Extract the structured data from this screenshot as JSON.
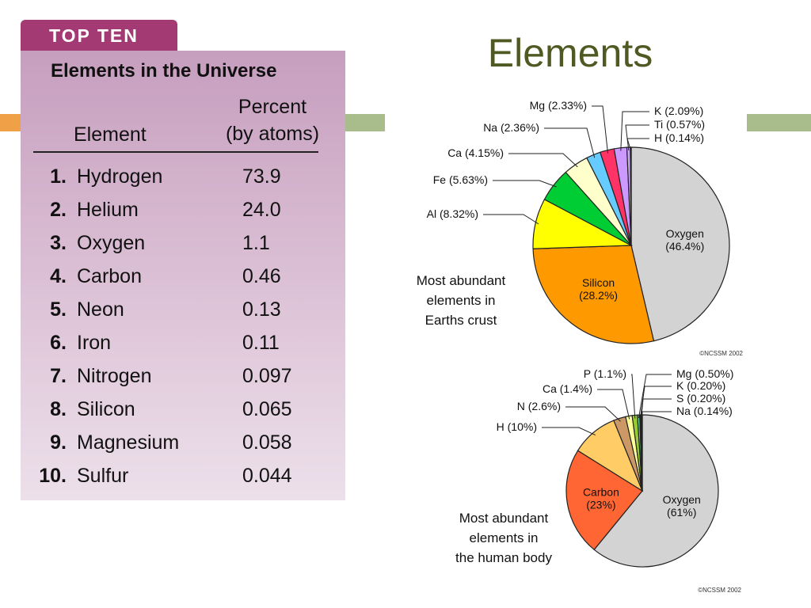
{
  "slide": {
    "title": "Elements"
  },
  "table": {
    "tab_label": "TOP TEN",
    "title": "Elements in the Universe",
    "col_element": "Element",
    "col_percent_line1": "Percent",
    "col_percent_line2": "(by atoms)",
    "rows": [
      {
        "rank": "1.",
        "element": "Hydrogen",
        "percent": "73.9"
      },
      {
        "rank": "2.",
        "element": "Helium",
        "percent": "24.0"
      },
      {
        "rank": "3.",
        "element": "Oxygen",
        "percent": "1.1"
      },
      {
        "rank": "4.",
        "element": "Carbon",
        "percent": "0.46"
      },
      {
        "rank": "5.",
        "element": "Neon",
        "percent": "0.13"
      },
      {
        "rank": "6.",
        "element": "Iron",
        "percent": "0.11"
      },
      {
        "rank": "7.",
        "element": "Nitrogen",
        "percent": "0.097"
      },
      {
        "rank": "8.",
        "element": "Silicon",
        "percent": "0.065"
      },
      {
        "rank": "9.",
        "element": "Magnesium",
        "percent": "0.058"
      },
      {
        "rank": "10.",
        "element": "Sulfur",
        "percent": "0.044"
      }
    ]
  },
  "chart_data": [
    {
      "type": "table",
      "title": "Elements in the Universe",
      "columns": [
        "Element",
        "Percent (by atoms)"
      ],
      "rows": [
        [
          "Hydrogen",
          73.9
        ],
        [
          "Helium",
          24.0
        ],
        [
          "Oxygen",
          1.1
        ],
        [
          "Carbon",
          0.46
        ],
        [
          "Neon",
          0.13
        ],
        [
          "Iron",
          0.11
        ],
        [
          "Nitrogen",
          0.097
        ],
        [
          "Silicon",
          0.065
        ],
        [
          "Magnesium",
          0.058
        ],
        [
          "Sulfur",
          0.044
        ]
      ]
    },
    {
      "type": "pie",
      "caption": [
        "Most abundant",
        "elements in",
        "Earths crust"
      ],
      "credit": "©NCSSM 2002",
      "slices": [
        {
          "label": "Oxygen (46.4%)",
          "name": "Oxygen",
          "pct": "(46.4%)",
          "value": 46.4,
          "color": "#d3d3d3",
          "inside": true
        },
        {
          "label": "Silicon (28.2%)",
          "name": "Silicon",
          "pct": "(28.2%)",
          "value": 28.2,
          "color": "#ff9900",
          "inside": true
        },
        {
          "label": "Al (8.32%)",
          "value": 8.32,
          "color": "#ffff00"
        },
        {
          "label": "Fe (5.63%)",
          "value": 5.63,
          "color": "#00cc33"
        },
        {
          "label": "Ca (4.15%)",
          "value": 4.15,
          "color": "#ffffcc"
        },
        {
          "label": "Na (2.36%)",
          "value": 2.36,
          "color": "#66ccff"
        },
        {
          "label": "Mg (2.33%)",
          "value": 2.33,
          "color": "#ff3366"
        },
        {
          "label": "K (2.09%)",
          "value": 2.09,
          "color": "#cc99ff"
        },
        {
          "label": "Ti (0.57%)",
          "value": 0.57,
          "color": "#c8a8f0"
        },
        {
          "label": "H (0.14%)",
          "value": 0.14,
          "color": "#9999cc"
        }
      ]
    },
    {
      "type": "pie",
      "caption": [
        "Most abundant",
        "elements in",
        "the human body"
      ],
      "credit": "©NCSSM 2002",
      "slices": [
        {
          "label": "Oxygen (61%)",
          "name": "Oxygen",
          "pct": "(61%)",
          "value": 61,
          "color": "#d3d3d3",
          "inside": true
        },
        {
          "label": "Carbon (23%)",
          "name": "Carbon",
          "pct": "(23%)",
          "value": 23,
          "color": "#ff6633",
          "inside": true
        },
        {
          "label": "H (10%)",
          "value": 10,
          "color": "#ffcc66"
        },
        {
          "label": "N (2.6%)",
          "value": 2.6,
          "color": "#cc9966"
        },
        {
          "label": "Ca (1.4%)",
          "value": 1.4,
          "color": "#ffff99"
        },
        {
          "label": "P (1.1%)",
          "value": 1.1,
          "color": "#99cc33"
        },
        {
          "label": "Mg (0.50%)",
          "value": 0.5,
          "color": "#66cc99"
        },
        {
          "label": "K (0.20%)",
          "value": 0.2,
          "color": "#66ccff"
        },
        {
          "label": "S (0.20%)",
          "value": 0.2,
          "color": "#ffcc00"
        },
        {
          "label": "Na (0.14%)",
          "value": 0.14,
          "color": "#3399ff"
        }
      ]
    }
  ]
}
